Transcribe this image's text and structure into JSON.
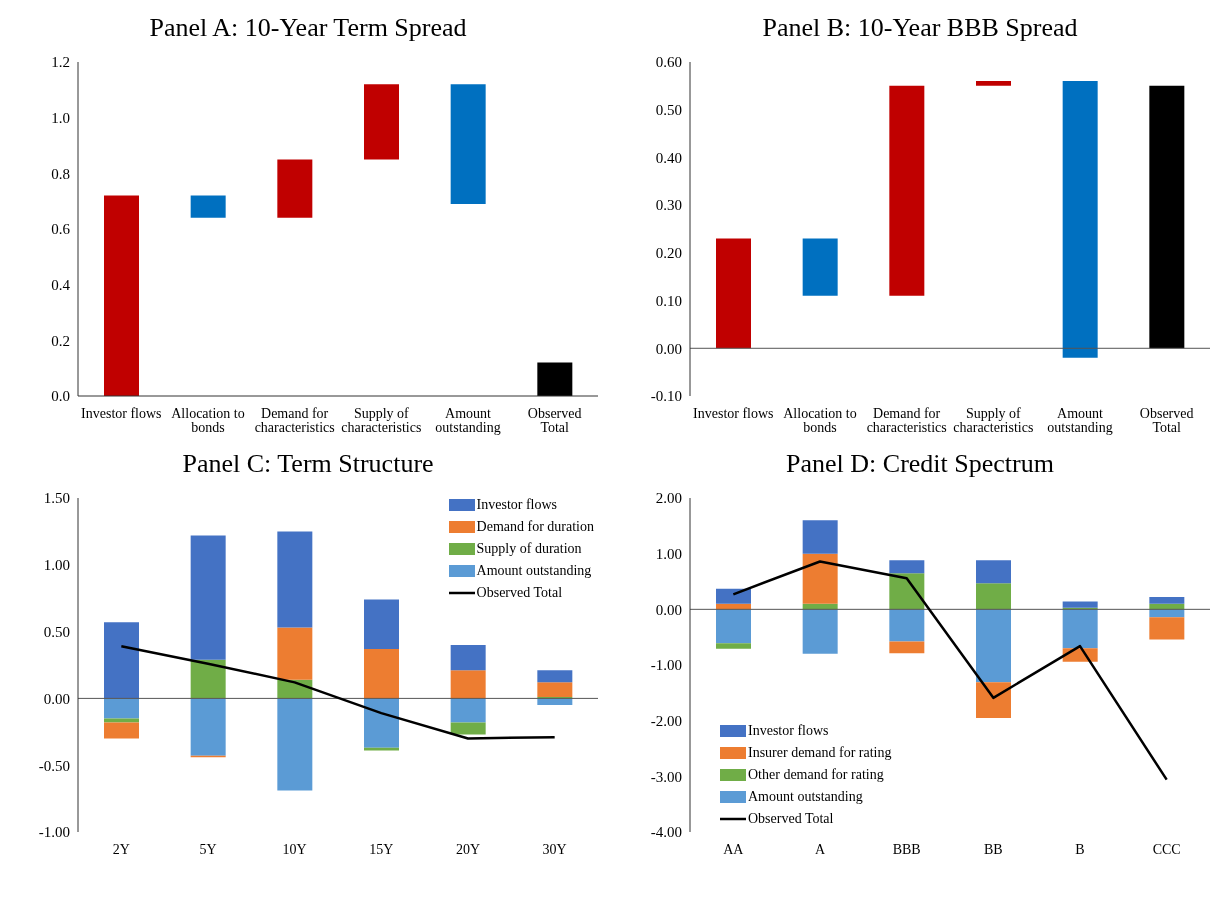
{
  "chart_data": [
    {
      "type": "bar",
      "title": "Panel A: 10-Year Term Spread",
      "categories": [
        "Investor flows",
        "Allocation to bonds",
        "Demand for characteristics",
        "Supply of characteristics",
        "Amount outstanding",
        "Observed Total"
      ],
      "base": [
        0,
        0.72,
        0.64,
        0.85,
        1.12,
        0
      ],
      "values": [
        0.72,
        -0.08,
        0.21,
        0.27,
        -0.43,
        0.12
      ],
      "colors": [
        "#c00000",
        "#0070c0",
        "#c00000",
        "#c00000",
        "#0070c0",
        "#000000"
      ],
      "ylim": [
        0,
        1.2
      ],
      "yticks": [
        {
          "value": 0,
          "label": "0.0"
        },
        {
          "value": 0.2,
          "label": "0.2"
        },
        {
          "value": 0.4,
          "label": "0.4"
        },
        {
          "value": 0.6,
          "label": "0.6"
        },
        {
          "value": 0.8,
          "label": "0.8"
        },
        {
          "value": 1,
          "label": "1.0"
        },
        {
          "value": 1.2,
          "label": "1.2"
        }
      ],
      "legend": false
    },
    {
      "type": "bar",
      "title": "Panel B: 10-Year BBB Spread",
      "categories": [
        "Investor flows",
        "Allocation to bonds",
        "Demand for characteristics",
        "Supply of characteristics",
        "Amount outstanding",
        "Observed Total"
      ],
      "base": [
        0,
        0.23,
        0.11,
        0.55,
        0.56,
        0
      ],
      "values": [
        0.23,
        -0.12,
        0.44,
        0.01,
        -0.58,
        0.55
      ],
      "colors": [
        "#c00000",
        "#0070c0",
        "#c00000",
        "#c00000",
        "#0070c0",
        "#000000"
      ],
      "ylim": [
        -0.1,
        0.6
      ],
      "yticks": [
        {
          "value": -0.1,
          "label": "-0.10"
        },
        {
          "value": 0,
          "label": "0.00"
        },
        {
          "value": 0.1,
          "label": "0.10"
        },
        {
          "value": 0.2,
          "label": "0.20"
        },
        {
          "value": 0.3,
          "label": "0.30"
        },
        {
          "value": 0.4,
          "label": "0.40"
        },
        {
          "value": 0.5,
          "label": "0.50"
        },
        {
          "value": 0.6,
          "label": "0.60"
        }
      ],
      "legend": false
    },
    {
      "type": "bar",
      "title": "Panel C: Term Structure",
      "categories": [
        "2Y",
        "5Y",
        "10Y",
        "15Y",
        "20Y",
        "30Y"
      ],
      "stacked": true,
      "series": [
        {
          "name": "Amount outstanding",
          "color": "#5b9bd5",
          "values": [
            -0.15,
            -0.43,
            -0.69,
            -0.37,
            -0.18,
            -0.05
          ]
        },
        {
          "name": "Supply of duration",
          "color": "#70ad47",
          "values": [
            -0.03,
            0.29,
            0.14,
            -0.02,
            -0.09,
            0.01
          ]
        },
        {
          "name": "Demand for duration",
          "color": "#ed7d31",
          "values": [
            -0.12,
            -0.01,
            0.39,
            0.37,
            0.21,
            0.11
          ]
        },
        {
          "name": "Investor flows",
          "color": "#4472c4",
          "values": [
            0.57,
            0.93,
            0.72,
            0.37,
            0.19,
            0.09
          ]
        },
        {
          "name": "Observed Total",
          "type": "line",
          "color": "#000000",
          "values": [
            0.39,
            0.26,
            0.12,
            -0.11,
            -0.3,
            -0.29
          ]
        }
      ],
      "ylim": [
        -1,
        1.5
      ],
      "yticks": [
        {
          "value": -1,
          "label": "-1.00"
        },
        {
          "value": -0.5,
          "label": "-0.50"
        },
        {
          "value": 0,
          "label": "0.00"
        },
        {
          "value": 0.5,
          "label": "0.50"
        },
        {
          "value": 1,
          "label": "1.00"
        },
        {
          "value": 1.5,
          "label": "1.50"
        }
      ],
      "legend": "top right"
    },
    {
      "type": "bar",
      "title": "Panel D: Credit Spectrum",
      "categories": [
        "AA",
        "A",
        "BBB",
        "BB",
        "B",
        "CCC"
      ],
      "stacked": true,
      "series": [
        {
          "name": "Amount outstanding",
          "color": "#5b9bd5",
          "values": [
            -0.61,
            -0.8,
            -0.58,
            -1.31,
            -0.7,
            -0.14
          ]
        },
        {
          "name": "Other demand for rating",
          "color": "#70ad47",
          "values": [
            -0.1,
            0.1,
            0.65,
            0.47,
            0.03,
            0.1
          ]
        },
        {
          "name": "Insurer demand for rating",
          "color": "#ed7d31",
          "values": [
            0.1,
            0.9,
            -0.21,
            -0.64,
            -0.24,
            -0.4
          ]
        },
        {
          "name": "Investor flows",
          "color": "#4472c4",
          "values": [
            0.27,
            0.6,
            0.23,
            0.41,
            0.11,
            0.12
          ]
        },
        {
          "name": "Observed Total",
          "type": "line",
          "color": "#000000",
          "values": [
            0.27,
            0.86,
            0.56,
            -1.59,
            -0.66,
            -3.06
          ]
        }
      ],
      "ylim": [
        -4,
        2
      ],
      "yticks": [
        {
          "value": -4,
          "label": "-4.00"
        },
        {
          "value": -3,
          "label": "-3.00"
        },
        {
          "value": -2,
          "label": "-2.00"
        },
        {
          "value": -1,
          "label": "-1.00"
        },
        {
          "value": 0,
          "label": "0.00"
        },
        {
          "value": 1,
          "label": "1.00"
        },
        {
          "value": 2,
          "label": "2.00"
        }
      ],
      "legend": "bottom left"
    }
  ]
}
